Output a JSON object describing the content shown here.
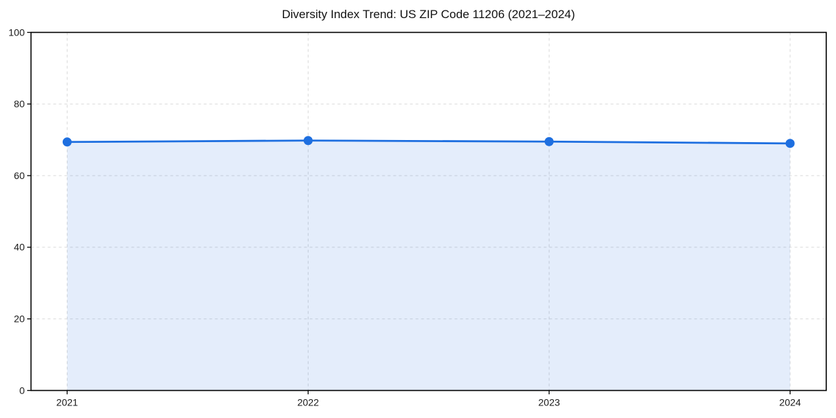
{
  "chart": {
    "title": "Diversity Index Trend: US ZIP Code 11206 (2021–2024)"
  },
  "chart_data": {
    "type": "area",
    "title": "Diversity Index Trend: US ZIP Code 11206 (2021–2024)",
    "categories": [
      "2021",
      "2022",
      "2023",
      "2024"
    ],
    "series": [
      {
        "name": "Diversity Index",
        "values": [
          69.4,
          69.8,
          69.5,
          69.0
        ]
      }
    ],
    "xlabel": "",
    "ylabel": "",
    "ylim": [
      0,
      100
    ],
    "yticks": [
      0,
      20,
      40,
      60,
      80,
      100
    ],
    "grid": true,
    "grid_style": "dashed",
    "legend_position": "none",
    "colors": {
      "line": "#1e6fe0",
      "marker": "#1e6fe0",
      "fill": "#1e6fe0",
      "fill_opacity": 0.12,
      "grid": "#d9d9d9",
      "axis": "#000000",
      "tick_label": "#1a1a1a",
      "title": "#111111",
      "background": "#ffffff"
    }
  }
}
